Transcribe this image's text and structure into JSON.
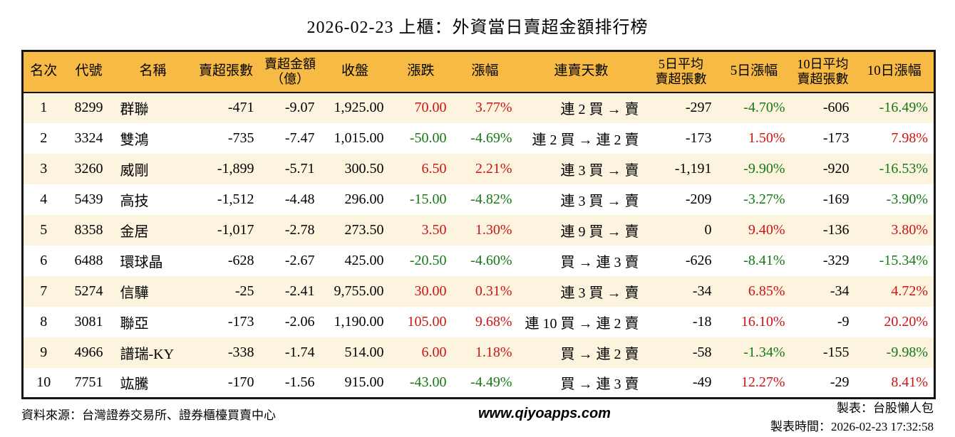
{
  "title": "2026-02-23 上櫃：外資當日賣超金額排行榜",
  "colors": {
    "header_bg": "#F6BA45",
    "stripe_bg": "#FCF4DF",
    "up_red": "#CC1414",
    "down_green": "#157815",
    "border": "#141414"
  },
  "table": {
    "columns": [
      {
        "key": "rank",
        "lines": [
          "名次"
        ],
        "align": "c",
        "signed": false
      },
      {
        "key": "code",
        "lines": [
          "代號"
        ],
        "align": "c",
        "signed": false
      },
      {
        "key": "name",
        "lines": [
          "名稱"
        ],
        "align": "l",
        "signed": false
      },
      {
        "key": "sell_vol",
        "lines": [
          "賣超張數"
        ],
        "align": "r",
        "signed": false
      },
      {
        "key": "sell_amt",
        "lines": [
          "賣超金額",
          "（億）"
        ],
        "align": "r",
        "signed": false
      },
      {
        "key": "close",
        "lines": [
          "收盤"
        ],
        "align": "r",
        "signed": false
      },
      {
        "key": "change",
        "lines": [
          "漲跌"
        ],
        "align": "r",
        "signed": true
      },
      {
        "key": "change_pct",
        "lines": [
          "漲幅"
        ],
        "align": "r",
        "signed": true
      },
      {
        "key": "streak",
        "lines": [
          "連賣天數"
        ],
        "align": "r",
        "signed": false
      },
      {
        "key": "avg5",
        "lines": [
          "5日平均",
          "賣超張數"
        ],
        "align": "r",
        "signed": false
      },
      {
        "key": "pct5",
        "lines": [
          "5日漲幅"
        ],
        "align": "r",
        "signed": true
      },
      {
        "key": "avg10",
        "lines": [
          "10日平均",
          "賣超張數"
        ],
        "align": "r",
        "signed": false
      },
      {
        "key": "pct10",
        "lines": [
          "10日漲幅"
        ],
        "align": "r",
        "signed": true
      }
    ],
    "rows": [
      {
        "rank": "1",
        "code": "8299",
        "name": "群聯",
        "sell_vol": "-471",
        "sell_amt": "-9.07",
        "close": "1,925.00",
        "change": "70.00",
        "change_pct": "3.77%",
        "streak": "連 2 買 → 賣",
        "avg5": "-297",
        "pct5": "-4.70%",
        "avg10": "-606",
        "pct10": "-16.49%"
      },
      {
        "rank": "2",
        "code": "3324",
        "name": "雙鴻",
        "sell_vol": "-735",
        "sell_amt": "-7.47",
        "close": "1,015.00",
        "change": "-50.00",
        "change_pct": "-4.69%",
        "streak": "連 2 買 → 連 2 賣",
        "avg5": "-173",
        "pct5": "1.50%",
        "avg10": "-173",
        "pct10": "7.98%"
      },
      {
        "rank": "3",
        "code": "3260",
        "name": "威剛",
        "sell_vol": "-1,899",
        "sell_amt": "-5.71",
        "close": "300.50",
        "change": "6.50",
        "change_pct": "2.21%",
        "streak": "連 3 買 → 賣",
        "avg5": "-1,191",
        "pct5": "-9.90%",
        "avg10": "-920",
        "pct10": "-16.53%"
      },
      {
        "rank": "4",
        "code": "5439",
        "name": "高技",
        "sell_vol": "-1,512",
        "sell_amt": "-4.48",
        "close": "296.00",
        "change": "-15.00",
        "change_pct": "-4.82%",
        "streak": "連 3 買 → 賣",
        "avg5": "-209",
        "pct5": "-3.27%",
        "avg10": "-169",
        "pct10": "-3.90%"
      },
      {
        "rank": "5",
        "code": "8358",
        "name": "金居",
        "sell_vol": "-1,017",
        "sell_amt": "-2.78",
        "close": "273.50",
        "change": "3.50",
        "change_pct": "1.30%",
        "streak": "連 9 買 → 賣",
        "avg5": "0",
        "pct5": "9.40%",
        "avg10": "-136",
        "pct10": "3.80%"
      },
      {
        "rank": "6",
        "code": "6488",
        "name": "環球晶",
        "sell_vol": "-628",
        "sell_amt": "-2.67",
        "close": "425.00",
        "change": "-20.50",
        "change_pct": "-4.60%",
        "streak": "買 → 連 3 賣",
        "avg5": "-626",
        "pct5": "-8.41%",
        "avg10": "-329",
        "pct10": "-15.34%"
      },
      {
        "rank": "7",
        "code": "5274",
        "name": "信驊",
        "sell_vol": "-25",
        "sell_amt": "-2.41",
        "close": "9,755.00",
        "change": "30.00",
        "change_pct": "0.31%",
        "streak": "連 3 買 → 賣",
        "avg5": "-34",
        "pct5": "6.85%",
        "avg10": "-34",
        "pct10": "4.72%"
      },
      {
        "rank": "8",
        "code": "3081",
        "name": "聯亞",
        "sell_vol": "-173",
        "sell_amt": "-2.06",
        "close": "1,190.00",
        "change": "105.00",
        "change_pct": "9.68%",
        "streak": "連 10 買 → 連 2 賣",
        "avg5": "-18",
        "pct5": "16.10%",
        "avg10": "-9",
        "pct10": "20.20%"
      },
      {
        "rank": "9",
        "code": "4966",
        "name": "譜瑞-KY",
        "sell_vol": "-338",
        "sell_amt": "-1.74",
        "close": "514.00",
        "change": "6.00",
        "change_pct": "1.18%",
        "streak": "買 → 連 2 賣",
        "avg5": "-58",
        "pct5": "-1.34%",
        "avg10": "-155",
        "pct10": "-9.98%"
      },
      {
        "rank": "10",
        "code": "7751",
        "name": "竑騰",
        "sell_vol": "-170",
        "sell_amt": "-1.56",
        "close": "915.00",
        "change": "-43.00",
        "change_pct": "-4.49%",
        "streak": "買 → 連 3 賣",
        "avg5": "-49",
        "pct5": "12.27%",
        "avg10": "-29",
        "pct10": "8.41%"
      }
    ]
  },
  "footer": {
    "source": "資料來源：台灣證券交易所、證券櫃檯買賣中心",
    "website": "www.qiyoapps.com",
    "author": "製表：台股懶人包",
    "generated": "製表時間：2026-02-23 17:32:58"
  }
}
